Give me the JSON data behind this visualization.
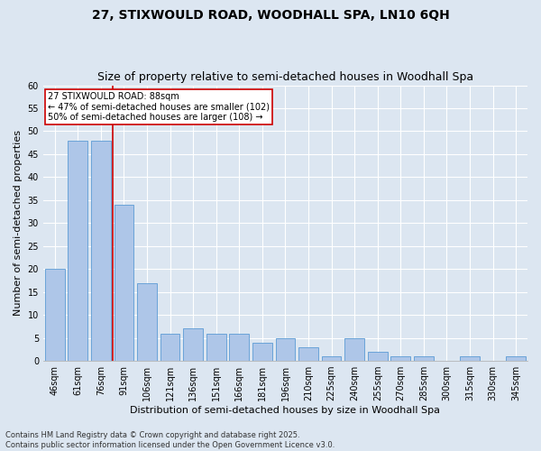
{
  "title1": "27, STIXWOULD ROAD, WOODHALL SPA, LN10 6QH",
  "title2": "Size of property relative to semi-detached houses in Woodhall Spa",
  "xlabel": "Distribution of semi-detached houses by size in Woodhall Spa",
  "ylabel": "Number of semi-detached properties",
  "categories": [
    "46sqm",
    "61sqm",
    "76sqm",
    "91sqm",
    "106sqm",
    "121sqm",
    "136sqm",
    "151sqm",
    "166sqm",
    "181sqm",
    "196sqm",
    "210sqm",
    "225sqm",
    "240sqm",
    "255sqm",
    "270sqm",
    "285sqm",
    "300sqm",
    "315sqm",
    "330sqm",
    "345sqm"
  ],
  "values": [
    20,
    48,
    48,
    34,
    17,
    6,
    7,
    6,
    6,
    4,
    5,
    3,
    1,
    5,
    2,
    1,
    1,
    0,
    1,
    0,
    1
  ],
  "bar_color": "#aec6e8",
  "bar_edge_color": "#5b9bd5",
  "vline_index": 2,
  "vline_color": "#cc0000",
  "ylim": [
    0,
    60
  ],
  "yticks": [
    0,
    5,
    10,
    15,
    20,
    25,
    30,
    35,
    40,
    45,
    50,
    55,
    60
  ],
  "annotation_text": "27 STIXWOULD ROAD: 88sqm\n← 47% of semi-detached houses are smaller (102)\n50% of semi-detached houses are larger (108) →",
  "annotation_color": "#cc0000",
  "background_color": "#dce6f1",
  "plot_bg_color": "#dce6f1",
  "footer": "Contains HM Land Registry data © Crown copyright and database right 2025.\nContains public sector information licensed under the Open Government Licence v3.0.",
  "title_fontsize": 10,
  "subtitle_fontsize": 9,
  "axis_label_fontsize": 8,
  "tick_fontsize": 7,
  "annotation_fontsize": 7,
  "footer_fontsize": 6
}
